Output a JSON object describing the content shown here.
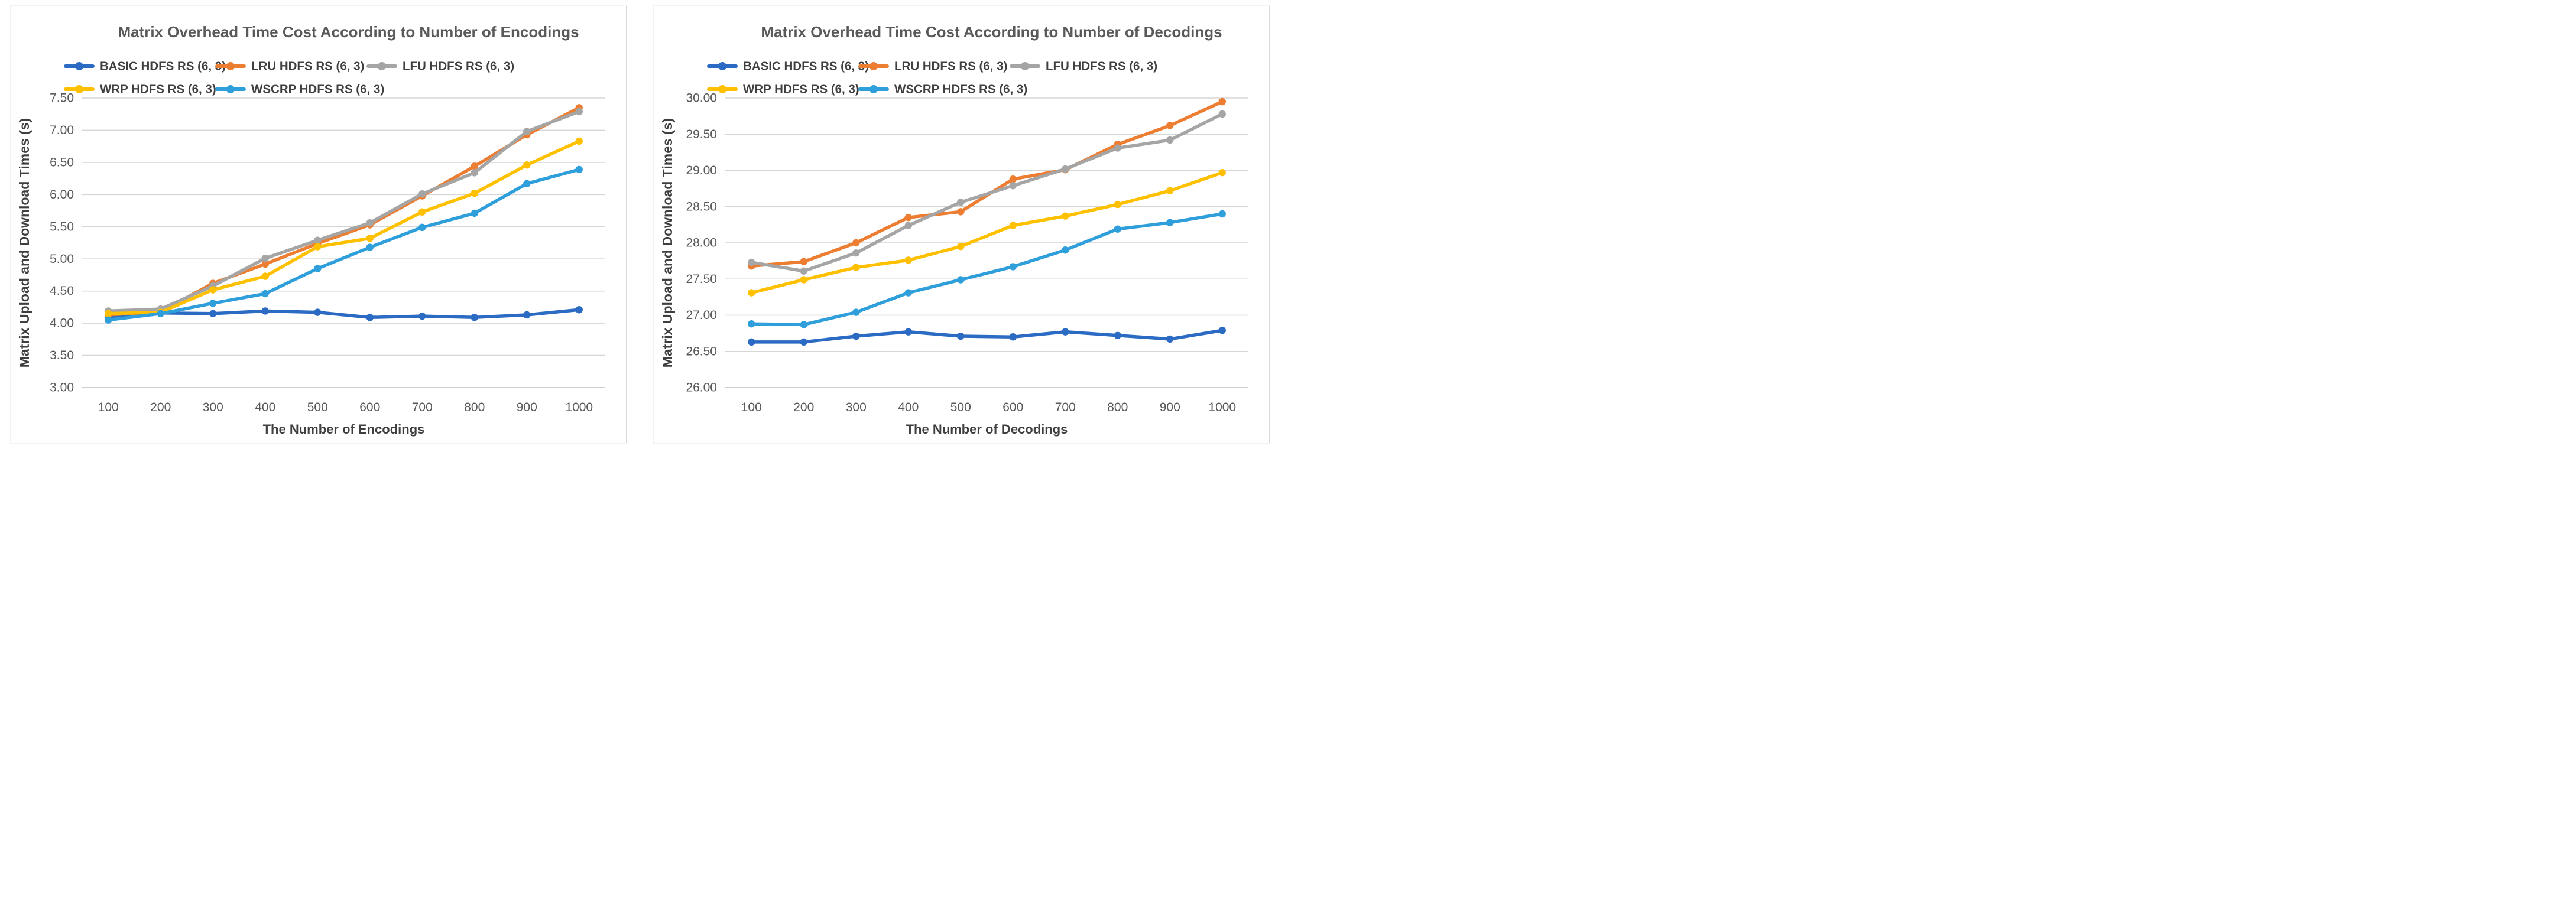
{
  "page": {
    "background_color": "#ffffff",
    "panel_border_color": "#d9d9d9"
  },
  "chart_data": [
    {
      "type": "line",
      "title": "Matrix Overhead Time Cost According to Number of Encodings",
      "xlabel": "The Number of Encodings",
      "ylabel": "Matrix Upload and Download Times (s)",
      "ylim": [
        3.0,
        7.5
      ],
      "y_step": 0.5,
      "y_ticks": [
        "7.50",
        "7.00",
        "6.50",
        "6.00",
        "5.50",
        "5.00",
        "4.50",
        "4.00",
        "3.50",
        "3.00"
      ],
      "grid": true,
      "legend_position": "top",
      "legend_rows": [
        [
          0,
          1,
          2
        ],
        [
          3,
          4
        ]
      ],
      "categories": [
        100,
        200,
        300,
        400,
        500,
        600,
        700,
        800,
        900,
        1000
      ],
      "series": [
        {
          "name": "BASIC HDFS RS (6, 3)",
          "color": "#2B6BC3",
          "values": [
            4.08,
            4.16,
            4.15,
            4.19,
            4.17,
            4.09,
            4.11,
            4.09,
            4.13,
            4.21
          ]
        },
        {
          "name": "LRU HDFS RS (6, 3)",
          "color": "#ED7D31",
          "values": [
            4.13,
            4.18,
            4.62,
            4.92,
            5.24,
            5.53,
            5.98,
            6.44,
            6.93,
            7.35
          ]
        },
        {
          "name": "LFU HDFS RS (6, 3)",
          "color": "#A5A5A5",
          "values": [
            4.19,
            4.22,
            4.58,
            5.01,
            5.29,
            5.56,
            6.01,
            6.34,
            6.98,
            7.29
          ]
        },
        {
          "name": "WRP HDFS RS (6, 3)",
          "color": "#FFC000",
          "values": [
            4.15,
            4.17,
            4.52,
            4.73,
            5.19,
            5.32,
            5.73,
            6.02,
            6.46,
            6.83
          ]
        },
        {
          "name": "WSCRP HDFS RS (6, 3)",
          "color": "#2F9FDC",
          "values": [
            4.05,
            4.15,
            4.31,
            4.46,
            4.85,
            5.18,
            5.49,
            5.71,
            6.17,
            6.39
          ]
        }
      ]
    },
    {
      "type": "line",
      "title": "Matrix Overhead Time Cost According to Number of Decodings",
      "xlabel": "The Number of Decodings",
      "ylabel": "Matrix Upload and Download Times (s)",
      "ylim": [
        26.0,
        30.0
      ],
      "y_step": 0.5,
      "y_ticks": [
        "30.00",
        "29.50",
        "29.00",
        "28.50",
        "28.00",
        "27.50",
        "27.00",
        "26.50",
        "26.00"
      ],
      "grid": true,
      "legend_position": "top",
      "legend_rows": [
        [
          0,
          1,
          2
        ],
        [
          3,
          4
        ]
      ],
      "categories": [
        100,
        200,
        300,
        400,
        500,
        600,
        700,
        800,
        900,
        1000
      ],
      "series": [
        {
          "name": "BASIC HDFS RS (6, 3)",
          "color": "#2B6BC3",
          "values": [
            26.63,
            26.63,
            26.71,
            26.77,
            26.71,
            26.7,
            26.77,
            26.72,
            26.67,
            26.79
          ]
        },
        {
          "name": "LRU HDFS RS (6, 3)",
          "color": "#ED7D31",
          "values": [
            27.68,
            27.74,
            28.0,
            28.35,
            28.43,
            28.88,
            29.01,
            29.36,
            29.62,
            29.95
          ]
        },
        {
          "name": "LFU HDFS RS (6, 3)",
          "color": "#A5A5A5",
          "values": [
            27.73,
            27.61,
            27.86,
            28.24,
            28.56,
            28.79,
            29.02,
            29.31,
            29.42,
            29.78
          ]
        },
        {
          "name": "WRP HDFS RS (6, 3)",
          "color": "#FFC000",
          "values": [
            27.31,
            27.49,
            27.66,
            27.76,
            27.95,
            28.24,
            28.37,
            28.53,
            28.72,
            28.97
          ]
        },
        {
          "name": "WSCRP HDFS RS (6, 3)",
          "color": "#2F9FDC",
          "values": [
            26.88,
            26.87,
            27.04,
            27.31,
            27.49,
            27.67,
            27.9,
            28.19,
            28.28,
            28.4
          ]
        }
      ]
    }
  ],
  "style_colors": {
    "title_text": "#595959",
    "tick_text": "#595959",
    "axis_title_text": "#3f3f3f",
    "legend_text": "#3f3f3f",
    "gridline": "#d6d6d6",
    "axis_line": "#bfbfbf"
  }
}
